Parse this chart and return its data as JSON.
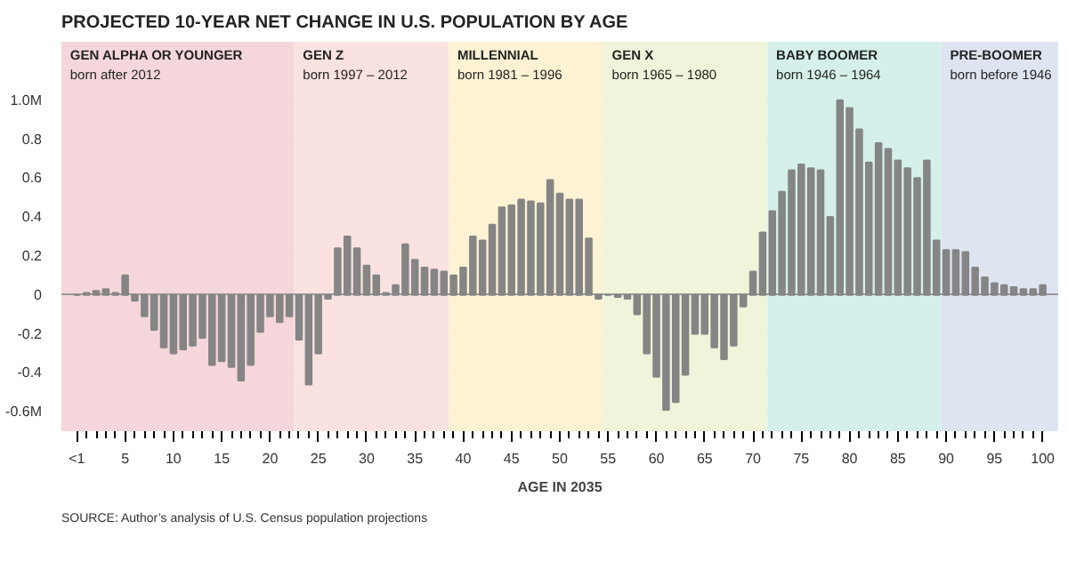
{
  "chart_data": {
    "type": "bar",
    "title": "PROJECTED 10-YEAR NET CHANGE IN U.S. POPULATION BY AGE",
    "xlabel": "AGE IN 2035",
    "x": [
      0,
      1,
      2,
      3,
      4,
      5,
      6,
      7,
      8,
      9,
      10,
      11,
      12,
      13,
      14,
      15,
      16,
      17,
      18,
      19,
      20,
      21,
      22,
      23,
      24,
      25,
      26,
      27,
      28,
      29,
      30,
      31,
      32,
      33,
      34,
      35,
      36,
      37,
      38,
      39,
      40,
      41,
      42,
      43,
      44,
      45,
      46,
      47,
      48,
      49,
      50,
      51,
      52,
      53,
      54,
      55,
      56,
      57,
      58,
      59,
      60,
      61,
      62,
      63,
      64,
      65,
      66,
      67,
      68,
      69,
      70,
      71,
      72,
      73,
      74,
      75,
      76,
      77,
      78,
      79,
      80,
      81,
      82,
      83,
      84,
      85,
      86,
      87,
      88,
      89,
      90,
      91,
      92,
      93,
      94,
      95,
      96,
      97,
      98,
      99,
      100
    ],
    "values": [
      0.0,
      0.01,
      0.02,
      0.03,
      0.01,
      0.1,
      -0.03,
      -0.11,
      -0.18,
      -0.27,
      -0.3,
      -0.28,
      -0.26,
      -0.22,
      -0.36,
      -0.34,
      -0.37,
      -0.44,
      -0.36,
      -0.19,
      -0.11,
      -0.14,
      -0.11,
      -0.23,
      -0.46,
      -0.3,
      -0.02,
      0.24,
      0.3,
      0.24,
      0.15,
      0.1,
      0.01,
      0.05,
      0.26,
      0.18,
      0.14,
      0.13,
      0.12,
      0.1,
      0.14,
      0.3,
      0.28,
      0.36,
      0.45,
      0.46,
      0.49,
      0.48,
      0.47,
      0.59,
      0.52,
      0.49,
      0.49,
      0.29,
      -0.02,
      0.0,
      -0.01,
      -0.02,
      -0.1,
      -0.3,
      -0.42,
      -0.59,
      -0.55,
      -0.41,
      -0.2,
      -0.2,
      -0.27,
      -0.33,
      -0.26,
      -0.06,
      0.12,
      0.32,
      0.43,
      0.53,
      0.64,
      0.67,
      0.65,
      0.64,
      0.4,
      1.0,
      0.96,
      0.85,
      0.68,
      0.78,
      0.75,
      0.69,
      0.65,
      0.6,
      0.69,
      0.28,
      0.23,
      0.23,
      0.22,
      0.14,
      0.09,
      0.06,
      0.05,
      0.04,
      0.03,
      0.03,
      0.05
    ],
    "color": "#858585",
    "xlim": [
      -1.6,
      101.6
    ],
    "ylim": [
      -0.7,
      1.3
    ],
    "xticks": [
      {
        "value": 0,
        "label": "<1"
      },
      5,
      10,
      15,
      20,
      25,
      30,
      35,
      40,
      45,
      50,
      55,
      60,
      65,
      70,
      75,
      80,
      85,
      90,
      95,
      100,
      {
        "value": 1,
        "label": null
      },
      {
        "value": 2,
        "label": null
      },
      {
        "value": 3,
        "label": null
      },
      {
        "value": 4,
        "label": null
      },
      {
        "value": 6,
        "label": null
      },
      {
        "value": 7,
        "label": null
      },
      {
        "value": 8,
        "label": null
      },
      {
        "value": 9,
        "label": null
      },
      {
        "value": 11,
        "label": null
      },
      {
        "value": 12,
        "label": null
      },
      {
        "value": 13,
        "label": null
      },
      {
        "value": 14,
        "label": null
      },
      {
        "value": 16,
        "label": null
      },
      {
        "value": 17,
        "label": null
      },
      {
        "value": 18,
        "label": null
      },
      {
        "value": 19,
        "label": null
      },
      {
        "value": 21,
        "label": null
      },
      {
        "value": 22,
        "label": null
      },
      {
        "value": 23,
        "label": null
      },
      {
        "value": 24,
        "label": null
      },
      {
        "value": 26,
        "label": null
      },
      {
        "value": 27,
        "label": null
      },
      {
        "value": 28,
        "label": null
      },
      {
        "value": 29,
        "label": null
      },
      {
        "value": 31,
        "label": null
      },
      {
        "value": 32,
        "label": null
      },
      {
        "value": 33,
        "label": null
      },
      {
        "value": 34,
        "label": null
      },
      {
        "value": 36,
        "label": null
      },
      {
        "value": 37,
        "label": null
      },
      {
        "value": 38,
        "label": null
      },
      {
        "value": 39,
        "label": null
      },
      {
        "value": 41,
        "label": null
      },
      {
        "value": 42,
        "label": null
      },
      {
        "value": 43,
        "label": null
      },
      {
        "value": 44,
        "label": null
      },
      {
        "value": 46,
        "label": null
      },
      {
        "value": 47,
        "label": null
      },
      {
        "value": 48,
        "label": null
      },
      {
        "value": 49,
        "label": null
      },
      {
        "value": 51,
        "label": null
      },
      {
        "value": 52,
        "label": null
      },
      {
        "value": 53,
        "label": null
      },
      {
        "value": 54,
        "label": null
      },
      {
        "value": 56,
        "label": null
      },
      {
        "value": 57,
        "label": null
      },
      {
        "value": 58,
        "label": null
      },
      {
        "value": 59,
        "label": null
      },
      {
        "value": 61,
        "label": null
      },
      {
        "value": 62,
        "label": null
      },
      {
        "value": 63,
        "label": null
      },
      {
        "value": 64,
        "label": null
      },
      {
        "value": 66,
        "label": null
      },
      {
        "value": 67,
        "label": null
      },
      {
        "value": 68,
        "label": null
      },
      {
        "value": 69,
        "label": null
      },
      {
        "value": 71,
        "label": null
      },
      {
        "value": 72,
        "label": null
      },
      {
        "value": 73,
        "label": null
      },
      {
        "value": 74,
        "label": null
      },
      {
        "value": 76,
        "label": null
      },
      {
        "value": 77,
        "label": null
      },
      {
        "value": 78,
        "label": null
      },
      {
        "value": 79,
        "label": null
      },
      {
        "value": 81,
        "label": null
      },
      {
        "value": 82,
        "label": null
      },
      {
        "value": 83,
        "label": null
      },
      {
        "value": 84,
        "label": null
      },
      {
        "value": 86,
        "label": null
      },
      {
        "value": 87,
        "label": null
      },
      {
        "value": 88,
        "label": null
      },
      {
        "value": 89,
        "label": null
      },
      {
        "value": 91,
        "label": null
      },
      {
        "value": 92,
        "label": null
      },
      {
        "value": 93,
        "label": null
      },
      {
        "value": 94,
        "label": null
      },
      {
        "value": 96,
        "label": null
      },
      {
        "value": 97,
        "label": null
      },
      {
        "value": 98,
        "label": null
      },
      {
        "value": 99,
        "label": null
      }
    ],
    "yticks": [
      {
        "value": -0.6,
        "label": "-0.6M"
      },
      -0.4,
      -0.2,
      0,
      0.2,
      0.4,
      0.6,
      0.8,
      {
        "value": 1.0,
        "label": "1.0M"
      }
    ],
    "grid": "y",
    "bands": [
      {
        "axis": "x",
        "from": -1.6,
        "to": 22.5,
        "label": "GEN ALPHA OR YOUNGER\nborn after 2012",
        "color": "#f5d6da"
      },
      {
        "axis": "x",
        "from": 22.5,
        "to": 38.5,
        "label": "GEN Z\nborn 1997 – 2012",
        "color": "#f9e2df"
      },
      {
        "axis": "x",
        "from": 38.5,
        "to": 54.5,
        "label": "MILLENNIAL\nborn 1981 – 1996",
        "color": "#fdf2d4"
      },
      {
        "axis": "x",
        "from": 54.5,
        "to": 71.5,
        "label": "GEN X\nborn 1965 – 1980",
        "color": "#eff4da"
      },
      {
        "axis": "x",
        "from": 71.5,
        "to": 89.5,
        "label": "BABY BOOMER\nborn 1946 – 1964",
        "color": "#d5f0ea"
      },
      {
        "axis": "x",
        "from": 89.5,
        "to": 101.6,
        "label": "PRE-BOOMER\nborn before 1946",
        "color": "#dfe4f1"
      }
    ],
    "annotations": [
      "SOURCE: Author’s analysis of U.S. Census population projections"
    ]
  }
}
